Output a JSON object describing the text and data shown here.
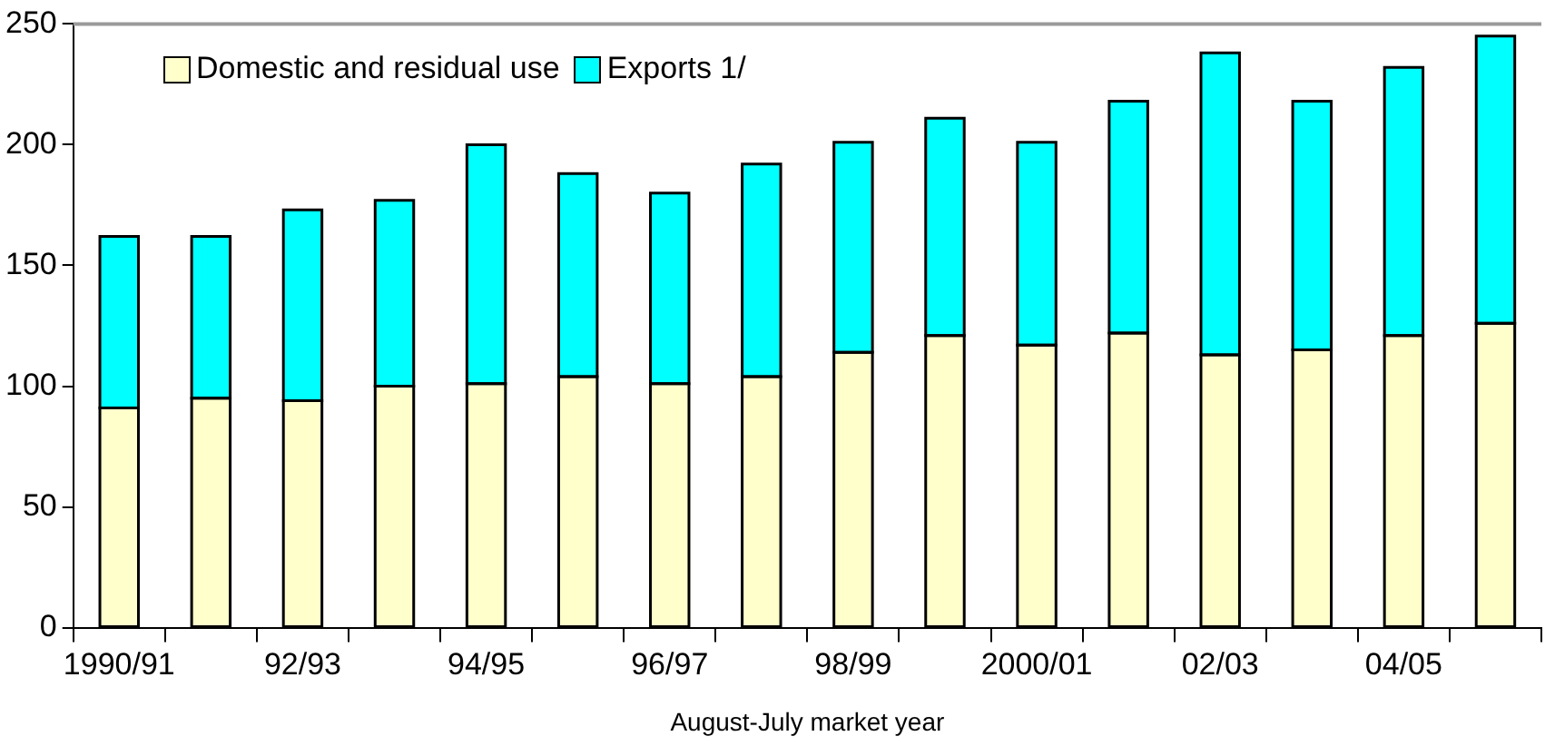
{
  "chart_data": {
    "type": "bar",
    "stacked": true,
    "xlabel": "August-July market year",
    "categories": [
      "1990/91",
      null,
      "92/93",
      null,
      "94/95",
      null,
      "96/97",
      null,
      "98/99",
      null,
      "2000/01",
      null,
      "02/03",
      null,
      "04/05",
      null
    ],
    "series": [
      {
        "name": "Domestic and residual use",
        "color": "#ffffcc",
        "values": [
          91,
          95,
          94,
          100,
          101,
          104,
          101,
          104,
          114,
          121,
          117,
          122,
          113,
          115,
          121,
          126
        ]
      },
      {
        "name": "Exports 1/",
        "color": "#00ffff",
        "values": [
          71,
          67,
          79,
          77,
          99,
          84,
          79,
          88,
          87,
          90,
          84,
          96,
          125,
          103,
          111,
          119
        ]
      }
    ],
    "ylim": [
      0,
      250
    ],
    "yticks": [
      0,
      50,
      100,
      150,
      200,
      250
    ],
    "grid": false,
    "legend": "top left"
  }
}
